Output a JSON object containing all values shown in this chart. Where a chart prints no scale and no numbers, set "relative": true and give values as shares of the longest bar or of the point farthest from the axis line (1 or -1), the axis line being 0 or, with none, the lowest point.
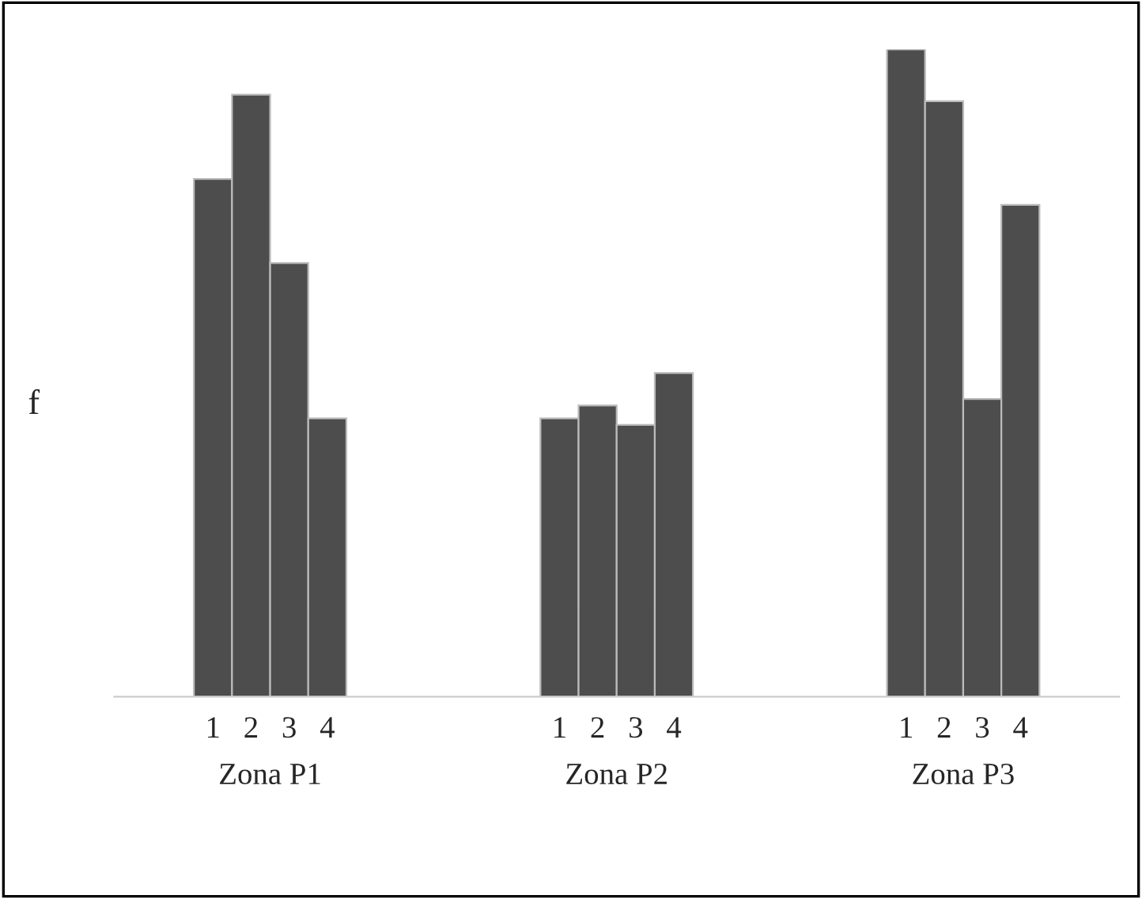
{
  "chart_data": {
    "type": "bar",
    "relative": true,
    "ylabel": "f",
    "categories": [
      "Zona P1",
      "Zona P2",
      "Zona P3"
    ],
    "series": [
      {
        "name": "1",
        "color": "#4d4d4d",
        "values": [
          0.8,
          0.43,
          1.0
        ]
      },
      {
        "name": "2",
        "color": "#4d4d4d",
        "values": [
          0.93,
          0.45,
          0.92
        ]
      },
      {
        "name": "3",
        "color": "#4d4d4d",
        "values": [
          0.67,
          0.42,
          0.46
        ]
      },
      {
        "name": "4",
        "color": "#4d4d4d",
        "values": [
          0.43,
          0.5,
          0.76
        ]
      }
    ],
    "grid": false,
    "legend": false
  }
}
